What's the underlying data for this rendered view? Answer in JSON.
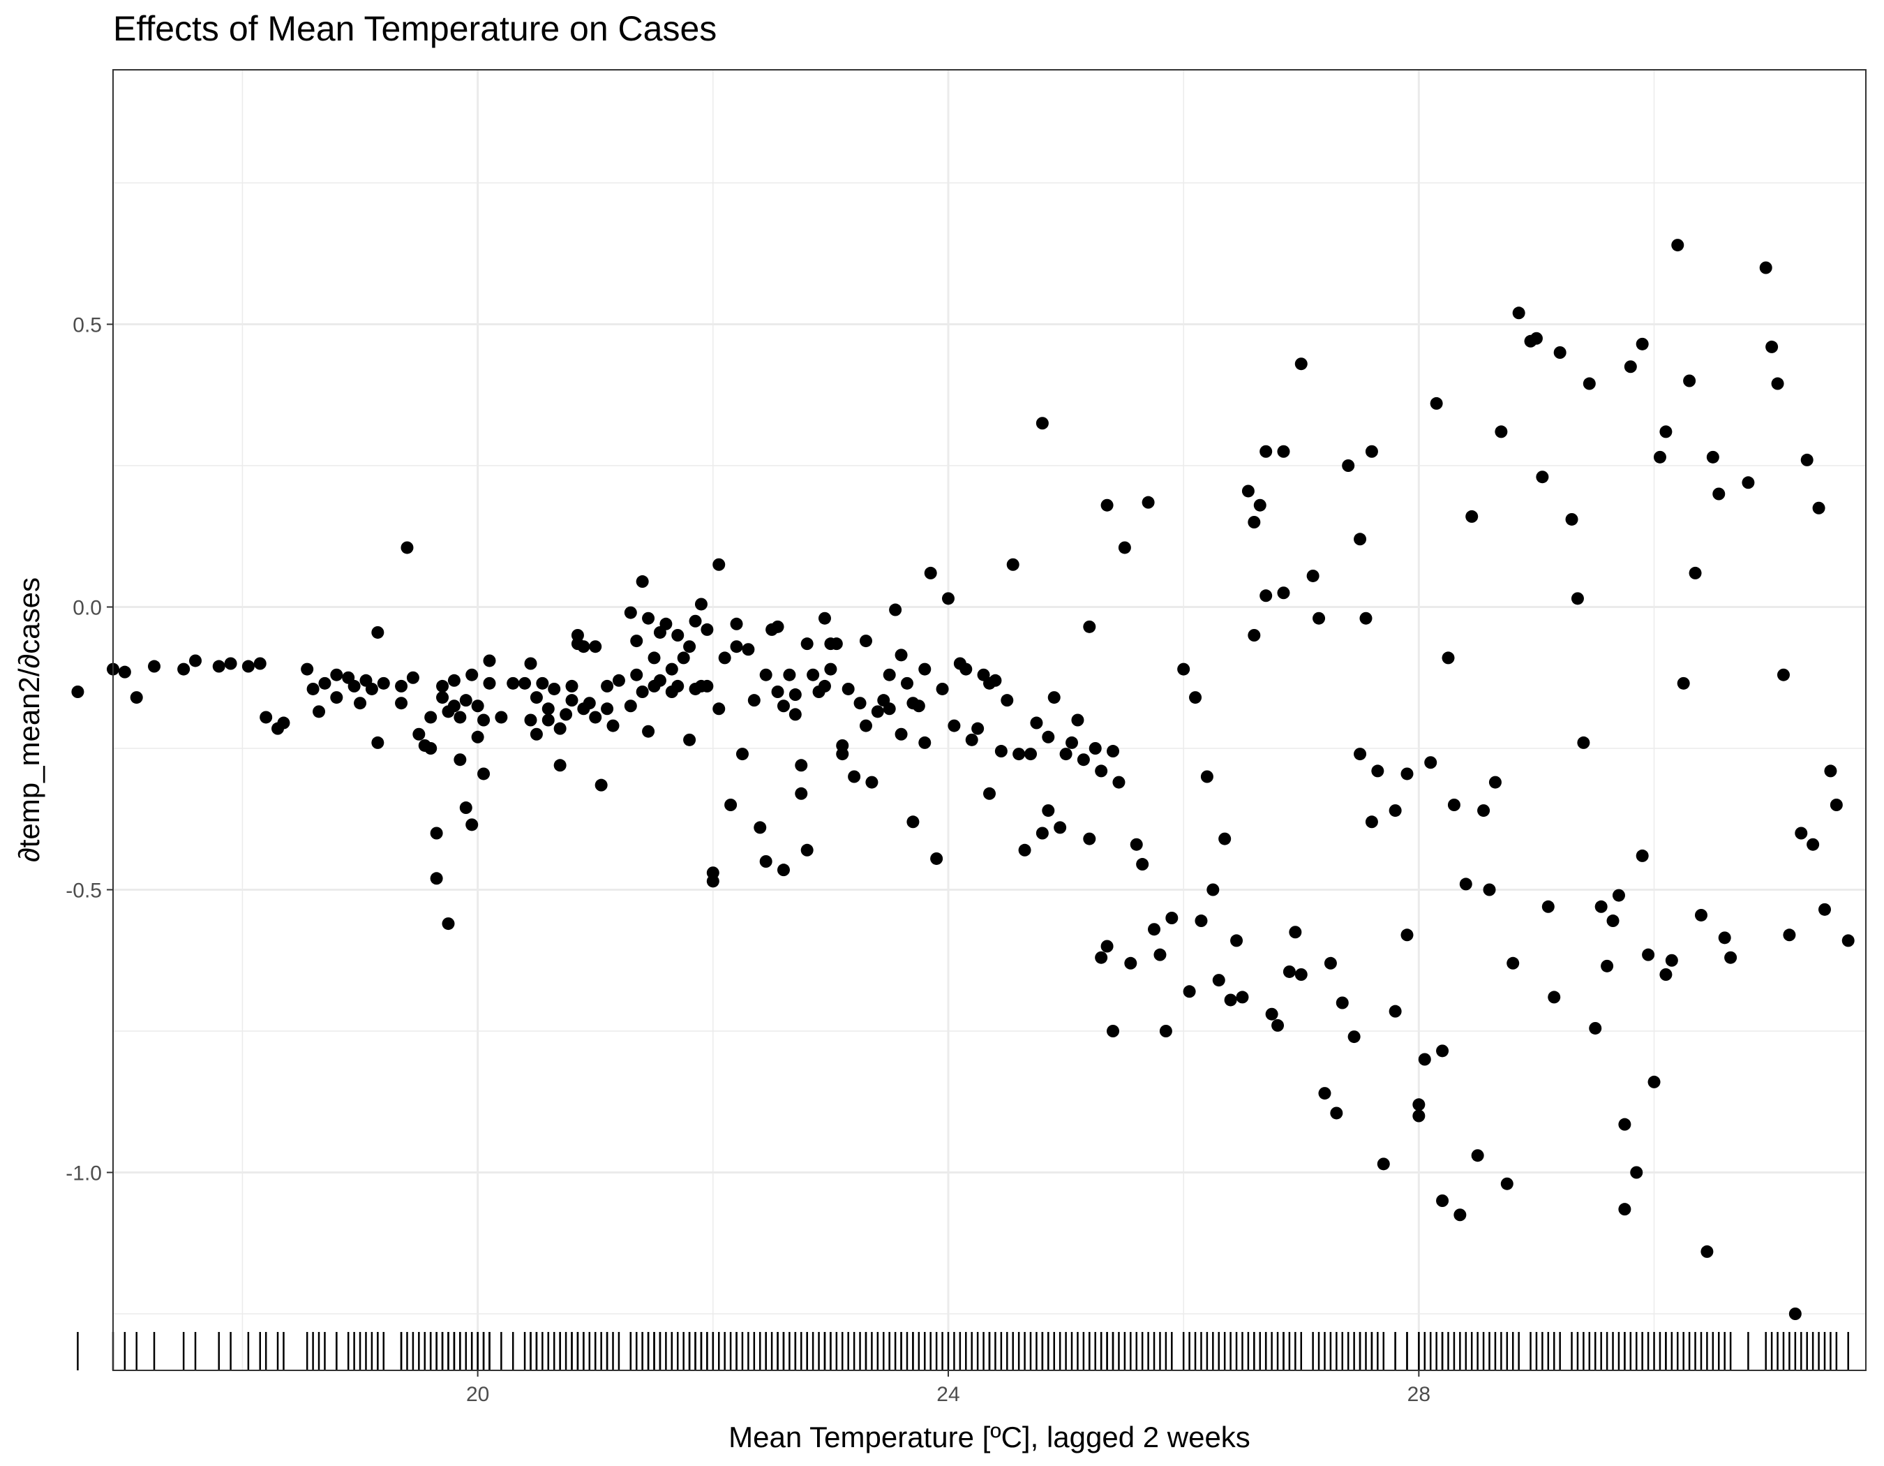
{
  "chart_data": {
    "type": "scatter",
    "title": "Effects of Mean Temperature on Cases",
    "xlabel": "Mean Temperature [ºC], lagged 2 weeks",
    "ylabel": "∂temp_mean2/∂cases",
    "xlim": [
      16.9,
      31.8
    ],
    "ylim": [
      -1.35,
      0.95
    ],
    "x_ticks": [
      20,
      24,
      28
    ],
    "x_tick_labels": [
      "20",
      "24",
      "28"
    ],
    "y_ticks": [
      -1.0,
      -0.5,
      0.0,
      0.5
    ],
    "y_tick_labels": [
      "-1.0",
      "-0.5",
      "0.0",
      "0.5"
    ],
    "grid": true,
    "rug": true,
    "theme": "bw",
    "colors": {
      "point": "#000000",
      "grid": "#ebebeb",
      "panel_border": "#333333",
      "tick_label": "#4d4d4d"
    },
    "points": [
      [
        16.6,
        -0.15
      ],
      [
        16.9,
        -0.11
      ],
      [
        17.0,
        -0.115
      ],
      [
        17.1,
        -0.16
      ],
      [
        17.25,
        -0.105
      ],
      [
        17.5,
        -0.11
      ],
      [
        17.6,
        -0.095
      ],
      [
        17.8,
        -0.105
      ],
      [
        17.9,
        -0.1
      ],
      [
        18.05,
        -0.105
      ],
      [
        18.15,
        -0.1
      ],
      [
        18.2,
        -0.195
      ],
      [
        18.3,
        -0.215
      ],
      [
        18.35,
        -0.205
      ],
      [
        18.55,
        -0.11
      ],
      [
        18.6,
        -0.145
      ],
      [
        18.65,
        -0.185
      ],
      [
        18.7,
        -0.135
      ],
      [
        18.8,
        -0.16
      ],
      [
        18.8,
        -0.12
      ],
      [
        18.9,
        -0.125
      ],
      [
        18.95,
        -0.14
      ],
      [
        19.0,
        -0.17
      ],
      [
        19.05,
        -0.13
      ],
      [
        19.1,
        -0.145
      ],
      [
        19.15,
        -0.045
      ],
      [
        19.15,
        -0.24
      ],
      [
        19.2,
        -0.135
      ],
      [
        19.35,
        -0.14
      ],
      [
        19.35,
        -0.17
      ],
      [
        19.4,
        0.105
      ],
      [
        19.45,
        -0.125
      ],
      [
        19.5,
        -0.225
      ],
      [
        19.55,
        -0.245
      ],
      [
        19.6,
        -0.25
      ],
      [
        19.6,
        -0.195
      ],
      [
        19.65,
        -0.48
      ],
      [
        19.65,
        -0.4
      ],
      [
        19.7,
        -0.14
      ],
      [
        19.7,
        -0.16
      ],
      [
        19.75,
        -0.56
      ],
      [
        19.75,
        -0.185
      ],
      [
        19.8,
        -0.13
      ],
      [
        19.8,
        -0.175
      ],
      [
        19.85,
        -0.27
      ],
      [
        19.85,
        -0.195
      ],
      [
        19.9,
        -0.355
      ],
      [
        19.9,
        -0.165
      ],
      [
        19.95,
        -0.385
      ],
      [
        19.95,
        -0.12
      ],
      [
        20.0,
        -0.175
      ],
      [
        20.0,
        -0.23
      ],
      [
        20.05,
        -0.2
      ],
      [
        20.05,
        -0.295
      ],
      [
        20.1,
        -0.095
      ],
      [
        20.1,
        -0.135
      ],
      [
        20.2,
        -0.195
      ],
      [
        20.3,
        -0.135
      ],
      [
        20.4,
        -0.135
      ],
      [
        20.45,
        -0.1
      ],
      [
        20.45,
        -0.2
      ],
      [
        20.5,
        -0.225
      ],
      [
        20.5,
        -0.16
      ],
      [
        20.55,
        -0.135
      ],
      [
        20.6,
        -0.2
      ],
      [
        20.6,
        -0.18
      ],
      [
        20.65,
        -0.145
      ],
      [
        20.7,
        -0.28
      ],
      [
        20.7,
        -0.215
      ],
      [
        20.75,
        -0.19
      ],
      [
        20.8,
        -0.14
      ],
      [
        20.8,
        -0.165
      ],
      [
        20.85,
        -0.065
      ],
      [
        20.85,
        -0.05
      ],
      [
        20.9,
        -0.07
      ],
      [
        20.9,
        -0.18
      ],
      [
        20.95,
        -0.17
      ],
      [
        21.0,
        -0.195
      ],
      [
        21.0,
        -0.07
      ],
      [
        21.05,
        -0.315
      ],
      [
        21.1,
        -0.14
      ],
      [
        21.1,
        -0.18
      ],
      [
        21.15,
        -0.21
      ],
      [
        21.2,
        -0.13
      ],
      [
        21.3,
        -0.01
      ],
      [
        21.3,
        -0.175
      ],
      [
        21.35,
        -0.06
      ],
      [
        21.35,
        -0.12
      ],
      [
        21.4,
        -0.15
      ],
      [
        21.4,
        0.045
      ],
      [
        21.45,
        -0.02
      ],
      [
        21.45,
        -0.22
      ],
      [
        21.5,
        -0.14
      ],
      [
        21.5,
        -0.09
      ],
      [
        21.55,
        -0.045
      ],
      [
        21.55,
        -0.13
      ],
      [
        21.6,
        -0.03
      ],
      [
        21.65,
        -0.15
      ],
      [
        21.65,
        -0.11
      ],
      [
        21.7,
        -0.05
      ],
      [
        21.7,
        -0.14
      ],
      [
        21.75,
        -0.09
      ],
      [
        21.8,
        -0.235
      ],
      [
        21.8,
        -0.07
      ],
      [
        21.85,
        -0.025
      ],
      [
        21.85,
        -0.145
      ],
      [
        21.9,
        0.005
      ],
      [
        21.9,
        -0.14
      ],
      [
        21.95,
        -0.04
      ],
      [
        21.95,
        -0.14
      ],
      [
        22.0,
        -0.47
      ],
      [
        22.0,
        -0.485
      ],
      [
        22.05,
        -0.18
      ],
      [
        22.05,
        0.075
      ],
      [
        22.1,
        -0.09
      ],
      [
        22.15,
        -0.35
      ],
      [
        22.2,
        -0.03
      ],
      [
        22.2,
        -0.07
      ],
      [
        22.25,
        -0.26
      ],
      [
        22.3,
        -0.075
      ],
      [
        22.35,
        -0.165
      ],
      [
        22.4,
        -0.39
      ],
      [
        22.45,
        -0.45
      ],
      [
        22.45,
        -0.12
      ],
      [
        22.5,
        -0.04
      ],
      [
        22.55,
        -0.035
      ],
      [
        22.55,
        -0.15
      ],
      [
        22.6,
        -0.465
      ],
      [
        22.6,
        -0.175
      ],
      [
        22.65,
        -0.12
      ],
      [
        22.7,
        -0.19
      ],
      [
        22.7,
        -0.155
      ],
      [
        22.75,
        -0.28
      ],
      [
        22.75,
        -0.33
      ],
      [
        22.8,
        -0.065
      ],
      [
        22.8,
        -0.43
      ],
      [
        22.85,
        -0.12
      ],
      [
        22.9,
        -0.15
      ],
      [
        22.95,
        -0.02
      ],
      [
        22.95,
        -0.14
      ],
      [
        23.0,
        -0.065
      ],
      [
        23.0,
        -0.11
      ],
      [
        23.05,
        -0.065
      ],
      [
        23.1,
        -0.26
      ],
      [
        23.1,
        -0.245
      ],
      [
        23.15,
        -0.145
      ],
      [
        23.2,
        -0.3
      ],
      [
        23.25,
        -0.17
      ],
      [
        23.3,
        -0.21
      ],
      [
        23.3,
        -0.06
      ],
      [
        23.35,
        -0.31
      ],
      [
        23.4,
        -0.185
      ],
      [
        23.45,
        -0.165
      ],
      [
        23.5,
        -0.18
      ],
      [
        23.5,
        -0.12
      ],
      [
        23.55,
        -0.005
      ],
      [
        23.6,
        -0.225
      ],
      [
        23.6,
        -0.085
      ],
      [
        23.65,
        -0.135
      ],
      [
        23.7,
        -0.17
      ],
      [
        23.7,
        -0.38
      ],
      [
        23.75,
        -0.175
      ],
      [
        23.8,
        -0.11
      ],
      [
        23.8,
        -0.24
      ],
      [
        23.85,
        0.06
      ],
      [
        23.9,
        -0.445
      ],
      [
        23.95,
        -0.145
      ],
      [
        24.0,
        0.015
      ],
      [
        24.05,
        -0.21
      ],
      [
        24.1,
        -0.1
      ],
      [
        24.15,
        -0.11
      ],
      [
        24.2,
        -0.235
      ],
      [
        24.25,
        -0.215
      ],
      [
        24.3,
        -0.12
      ],
      [
        24.35,
        -0.135
      ],
      [
        24.35,
        -0.33
      ],
      [
        24.4,
        -0.13
      ],
      [
        24.45,
        -0.255
      ],
      [
        24.5,
        -0.165
      ],
      [
        24.55,
        0.075
      ],
      [
        24.6,
        -0.26
      ],
      [
        24.65,
        -0.43
      ],
      [
        24.7,
        -0.26
      ],
      [
        24.75,
        -0.205
      ],
      [
        24.8,
        0.325
      ],
      [
        24.8,
        -0.4
      ],
      [
        24.85,
        -0.36
      ],
      [
        24.85,
        -0.23
      ],
      [
        24.9,
        -0.16
      ],
      [
        24.95,
        -0.39
      ],
      [
        25.0,
        -0.26
      ],
      [
        25.05,
        -0.24
      ],
      [
        25.1,
        -0.2
      ],
      [
        25.15,
        -0.27
      ],
      [
        25.2,
        -0.035
      ],
      [
        25.2,
        -0.41
      ],
      [
        25.25,
        -0.25
      ],
      [
        25.3,
        -0.62
      ],
      [
        25.3,
        -0.29
      ],
      [
        25.35,
        0.18
      ],
      [
        25.35,
        -0.6
      ],
      [
        25.4,
        -0.75
      ],
      [
        25.4,
        -0.255
      ],
      [
        25.45,
        -0.31
      ],
      [
        25.5,
        0.105
      ],
      [
        25.55,
        -0.63
      ],
      [
        25.6,
        -0.42
      ],
      [
        25.65,
        -0.455
      ],
      [
        25.7,
        0.185
      ],
      [
        25.75,
        -0.57
      ],
      [
        25.8,
        -0.615
      ],
      [
        25.85,
        -0.75
      ],
      [
        25.9,
        -0.55
      ],
      [
        26.0,
        -0.11
      ],
      [
        26.05,
        -0.68
      ],
      [
        26.1,
        -0.16
      ],
      [
        26.15,
        -0.555
      ],
      [
        26.2,
        -0.3
      ],
      [
        26.25,
        -0.5
      ],
      [
        26.3,
        -0.66
      ],
      [
        26.35,
        -0.41
      ],
      [
        26.4,
        -0.695
      ],
      [
        26.45,
        -0.59
      ],
      [
        26.5,
        -0.69
      ],
      [
        26.55,
        0.205
      ],
      [
        26.6,
        0.15
      ],
      [
        26.6,
        -0.05
      ],
      [
        26.65,
        0.18
      ],
      [
        26.7,
        0.275
      ],
      [
        26.7,
        0.02
      ],
      [
        26.75,
        -0.72
      ],
      [
        26.8,
        -0.74
      ],
      [
        26.85,
        0.275
      ],
      [
        26.85,
        0.025
      ],
      [
        26.9,
        -0.645
      ],
      [
        26.95,
        -0.575
      ],
      [
        27.0,
        0.43
      ],
      [
        27.0,
        -0.65
      ],
      [
        27.1,
        0.055
      ],
      [
        27.15,
        -0.02
      ],
      [
        27.2,
        -0.86
      ],
      [
        27.25,
        -0.63
      ],
      [
        27.3,
        -0.895
      ],
      [
        27.35,
        -0.7
      ],
      [
        27.4,
        0.25
      ],
      [
        27.45,
        -0.76
      ],
      [
        27.5,
        0.12
      ],
      [
        27.5,
        -0.26
      ],
      [
        27.55,
        -0.02
      ],
      [
        27.6,
        -0.38
      ],
      [
        27.6,
        0.275
      ],
      [
        27.65,
        -0.29
      ],
      [
        27.7,
        -0.985
      ],
      [
        27.8,
        -0.715
      ],
      [
        27.8,
        -0.36
      ],
      [
        27.9,
        -0.295
      ],
      [
        27.9,
        -0.58
      ],
      [
        28.0,
        -0.88
      ],
      [
        28.0,
        -0.9
      ],
      [
        28.05,
        -0.8
      ],
      [
        28.1,
        -0.275
      ],
      [
        28.15,
        0.36
      ],
      [
        28.2,
        -0.785
      ],
      [
        28.2,
        -1.05
      ],
      [
        28.25,
        -0.09
      ],
      [
        28.3,
        -0.35
      ],
      [
        28.35,
        -1.075
      ],
      [
        28.4,
        -0.49
      ],
      [
        28.45,
        0.16
      ],
      [
        28.5,
        -0.97
      ],
      [
        28.55,
        -0.36
      ],
      [
        28.6,
        -0.5
      ],
      [
        28.65,
        -0.31
      ],
      [
        28.7,
        0.31
      ],
      [
        28.75,
        -1.02
      ],
      [
        28.8,
        -0.63
      ],
      [
        28.85,
        0.52
      ],
      [
        28.95,
        0.47
      ],
      [
        29.0,
        0.475
      ],
      [
        29.05,
        0.23
      ],
      [
        29.1,
        -0.53
      ],
      [
        29.15,
        -0.69
      ],
      [
        29.2,
        0.45
      ],
      [
        29.3,
        0.155
      ],
      [
        29.35,
        0.015
      ],
      [
        29.4,
        -0.24
      ],
      [
        29.45,
        0.395
      ],
      [
        29.5,
        -0.745
      ],
      [
        29.55,
        -0.53
      ],
      [
        29.6,
        -0.635
      ],
      [
        29.65,
        -0.555
      ],
      [
        29.7,
        -0.51
      ],
      [
        29.75,
        -1.065
      ],
      [
        29.75,
        -0.915
      ],
      [
        29.8,
        0.425
      ],
      [
        29.85,
        -1.0
      ],
      [
        29.9,
        -0.44
      ],
      [
        29.9,
        0.465
      ],
      [
        29.95,
        -0.615
      ],
      [
        30.0,
        -0.84
      ],
      [
        30.05,
        0.265
      ],
      [
        30.1,
        -0.65
      ],
      [
        30.1,
        0.31
      ],
      [
        30.15,
        -0.625
      ],
      [
        30.2,
        0.64
      ],
      [
        30.25,
        -0.135
      ],
      [
        30.3,
        0.4
      ],
      [
        30.35,
        0.06
      ],
      [
        30.4,
        -0.545
      ],
      [
        30.45,
        -1.14
      ],
      [
        30.5,
        0.265
      ],
      [
        30.55,
        0.2
      ],
      [
        30.6,
        -0.585
      ],
      [
        30.65,
        -0.62
      ],
      [
        30.8,
        0.22
      ],
      [
        30.95,
        0.6
      ],
      [
        31.0,
        0.46
      ],
      [
        31.05,
        0.395
      ],
      [
        31.1,
        -0.12
      ],
      [
        31.15,
        -0.58
      ],
      [
        31.2,
        -1.25
      ],
      [
        31.25,
        -0.4
      ],
      [
        31.3,
        0.26
      ],
      [
        31.35,
        -0.42
      ],
      [
        31.4,
        0.175
      ],
      [
        31.45,
        -0.535
      ],
      [
        31.5,
        -0.29
      ],
      [
        31.55,
        -0.35
      ],
      [
        31.65,
        -0.59
      ]
    ]
  }
}
